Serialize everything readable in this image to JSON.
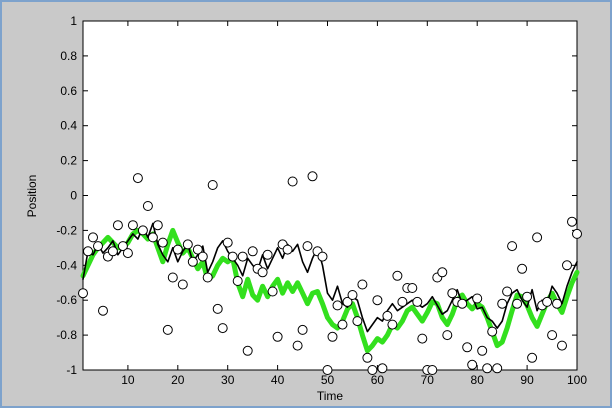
{
  "chart_data": {
    "type": "line",
    "title": "",
    "xlabel": "Time",
    "ylabel": "Position",
    "xlim": [
      1,
      100
    ],
    "ylim": [
      -1,
      1
    ],
    "xticks": [
      10,
      20,
      30,
      40,
      50,
      60,
      70,
      80,
      90,
      100
    ],
    "yticks": [
      -1,
      -0.8,
      -0.6,
      -0.4,
      -0.2,
      0,
      0.2,
      0.4,
      0.6,
      0.8,
      1
    ],
    "grid": false,
    "legend": "none",
    "colors": {
      "green": "#33e01e",
      "black": "#000000",
      "marker_edge": "#000000",
      "marker_fill": "#ffffff"
    },
    "series": [
      {
        "style": "line",
        "color": "#33e01e",
        "x": [
          1,
          2,
          3,
          4,
          5,
          6,
          7,
          8,
          9,
          10,
          11,
          12,
          13,
          14,
          15,
          16,
          17,
          18,
          19,
          20,
          21,
          22,
          23,
          24,
          25,
          26,
          27,
          28,
          29,
          30,
          31,
          32,
          33,
          34,
          35,
          36,
          37,
          38,
          39,
          40,
          41,
          42,
          43,
          44,
          45,
          46,
          47,
          48,
          49,
          50,
          51,
          52,
          53,
          54,
          55,
          56,
          57,
          58,
          59,
          60,
          61,
          62,
          63,
          64,
          65,
          66,
          67,
          68,
          69,
          70,
          71,
          72,
          73,
          74,
          75,
          76,
          77,
          78,
          79,
          80,
          81,
          82,
          83,
          84,
          85,
          86,
          87,
          88,
          89,
          90,
          91,
          92,
          93,
          94,
          95,
          96,
          97,
          98,
          99,
          100
        ],
        "y": [
          -0.46,
          -0.4,
          -0.34,
          -0.3,
          -0.27,
          -0.24,
          -0.27,
          -0.3,
          -0.3,
          -0.27,
          -0.22,
          -0.2,
          -0.22,
          -0.25,
          -0.22,
          -0.3,
          -0.38,
          -0.28,
          -0.2,
          -0.27,
          -0.33,
          -0.3,
          -0.36,
          -0.42,
          -0.38,
          -0.48,
          -0.46,
          -0.4,
          -0.36,
          -0.38,
          -0.36,
          -0.5,
          -0.58,
          -0.48,
          -0.57,
          -0.6,
          -0.52,
          -0.58,
          -0.52,
          -0.48,
          -0.56,
          -0.5,
          -0.55,
          -0.5,
          -0.56,
          -0.62,
          -0.56,
          -0.55,
          -0.62,
          -0.7,
          -0.74,
          -0.76,
          -0.72,
          -0.65,
          -0.62,
          -0.7,
          -0.8,
          -0.89,
          -0.86,
          -0.82,
          -0.84,
          -0.8,
          -0.74,
          -0.76,
          -0.72,
          -0.66,
          -0.64,
          -0.68,
          -0.72,
          -0.67,
          -0.61,
          -0.62,
          -0.7,
          -0.74,
          -0.68,
          -0.6,
          -0.57,
          -0.62,
          -0.65,
          -0.62,
          -0.64,
          -0.7,
          -0.78,
          -0.86,
          -0.84,
          -0.76,
          -0.66,
          -0.57,
          -0.58,
          -0.63,
          -0.7,
          -0.75,
          -0.68,
          -0.61,
          -0.56,
          -0.62,
          -0.67,
          -0.58,
          -0.5,
          -0.44
        ]
      },
      {
        "style": "line",
        "color": "#000000",
        "x": [
          1,
          2,
          3,
          4,
          5,
          6,
          7,
          8,
          9,
          10,
          11,
          12,
          13,
          14,
          15,
          16,
          17,
          18,
          19,
          20,
          21,
          22,
          23,
          24,
          25,
          26,
          27,
          28,
          29,
          30,
          31,
          32,
          33,
          34,
          35,
          36,
          37,
          38,
          39,
          40,
          41,
          42,
          43,
          44,
          45,
          46,
          47,
          48,
          49,
          50,
          51,
          52,
          53,
          54,
          55,
          56,
          57,
          58,
          59,
          60,
          61,
          62,
          63,
          64,
          65,
          66,
          67,
          68,
          69,
          70,
          71,
          72,
          73,
          74,
          75,
          76,
          77,
          78,
          79,
          80,
          81,
          82,
          83,
          84,
          85,
          86,
          87,
          88,
          89,
          90,
          91,
          92,
          93,
          94,
          95,
          96,
          97,
          98,
          99,
          100
        ],
        "y": [
          -0.48,
          -0.32,
          -0.34,
          -0.28,
          -0.33,
          -0.3,
          -0.26,
          -0.34,
          -0.3,
          -0.26,
          -0.22,
          -0.25,
          -0.18,
          -0.24,
          -0.16,
          -0.28,
          -0.34,
          -0.38,
          -0.3,
          -0.38,
          -0.32,
          -0.28,
          -0.38,
          -0.34,
          -0.29,
          -0.44,
          -0.38,
          -0.3,
          -0.26,
          -0.32,
          -0.36,
          -0.4,
          -0.46,
          -0.36,
          -0.4,
          -0.43,
          -0.34,
          -0.42,
          -0.36,
          -0.3,
          -0.36,
          -0.28,
          -0.32,
          -0.28,
          -0.38,
          -0.44,
          -0.36,
          -0.3,
          -0.4,
          -0.56,
          -0.6,
          -0.52,
          -0.62,
          -0.64,
          -0.58,
          -0.6,
          -0.7,
          -0.78,
          -0.74,
          -0.7,
          -0.72,
          -0.66,
          -0.62,
          -0.66,
          -0.64,
          -0.62,
          -0.6,
          -0.62,
          -0.64,
          -0.62,
          -0.58,
          -0.63,
          -0.68,
          -0.66,
          -0.6,
          -0.54,
          -0.62,
          -0.6,
          -0.58,
          -0.65,
          -0.64,
          -0.7,
          -0.72,
          -0.76,
          -0.72,
          -0.62,
          -0.56,
          -0.54,
          -0.6,
          -0.64,
          -0.54,
          -0.66,
          -0.6,
          -0.62,
          -0.52,
          -0.56,
          -0.62,
          -0.52,
          -0.44,
          -0.38
        ]
      },
      {
        "style": "scatter",
        "marker": "circle",
        "x": [
          1,
          2,
          3,
          4,
          5,
          6,
          7,
          8,
          9,
          10,
          11,
          12,
          13,
          14,
          15,
          16,
          17,
          18,
          19,
          20,
          21,
          22,
          23,
          24,
          25,
          26,
          27,
          28,
          29,
          30,
          31,
          32,
          33,
          34,
          35,
          36,
          37,
          38,
          39,
          40,
          41,
          42,
          43,
          44,
          45,
          46,
          47,
          48,
          49,
          50,
          51,
          52,
          53,
          54,
          55,
          56,
          57,
          58,
          59,
          60,
          61,
          62,
          63,
          64,
          65,
          66,
          67,
          68,
          69,
          70,
          71,
          72,
          73,
          74,
          75,
          76,
          77,
          78,
          79,
          80,
          81,
          82,
          83,
          84,
          85,
          86,
          87,
          88,
          89,
          90,
          91,
          92,
          93,
          94,
          95,
          96,
          97,
          98,
          99,
          100
        ],
        "y": [
          -0.56,
          -0.32,
          -0.24,
          -0.29,
          -0.66,
          -0.35,
          -0.32,
          -0.17,
          -0.29,
          -0.33,
          -0.17,
          0.1,
          -0.2,
          -0.06,
          -0.24,
          -0.17,
          -0.27,
          -0.77,
          -0.47,
          -0.31,
          -0.51,
          -0.28,
          -0.38,
          -0.31,
          -0.35,
          -0.47,
          0.06,
          -0.65,
          -0.76,
          -0.27,
          -0.35,
          -0.49,
          -0.35,
          -0.89,
          -0.32,
          -0.42,
          -0.44,
          -0.34,
          -0.55,
          -0.81,
          -0.28,
          -0.31,
          0.08,
          -0.86,
          -0.77,
          -0.29,
          0.11,
          -0.32,
          -0.35,
          -1.0,
          -0.81,
          -0.63,
          -0.74,
          -0.61,
          -0.57,
          -0.72,
          -0.51,
          -0.93,
          -1.0,
          -0.6,
          -0.99,
          -0.69,
          -0.74,
          -0.46,
          -0.61,
          -0.53,
          -0.53,
          -0.61,
          -0.82,
          -1.0,
          -1.0,
          -0.47,
          -0.44,
          -0.8,
          -0.56,
          -0.61,
          -0.62,
          -0.87,
          -0.97,
          -0.59,
          -0.89,
          -0.99,
          -0.78,
          -0.99,
          -0.62,
          -0.55,
          -0.29,
          -0.62,
          -0.42,
          -0.58,
          -0.93,
          -0.24,
          -0.63,
          -0.61,
          -0.8,
          -0.62,
          -0.86,
          -0.4,
          -0.15,
          -0.22
        ]
      }
    ]
  }
}
